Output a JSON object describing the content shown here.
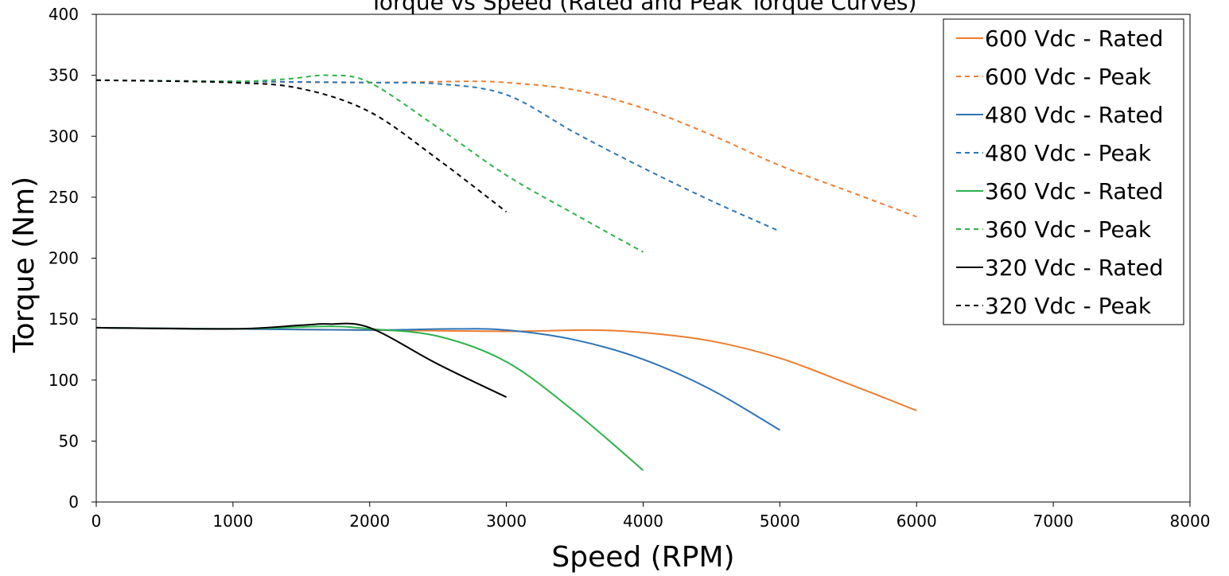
{
  "chart_data": {
    "type": "line",
    "title": "Torque vs Speed (Rated and Peak Torque Curves)",
    "xlabel": "Speed (RPM)",
    "ylabel": "Torque (Nm)",
    "xlim": [
      0,
      8000
    ],
    "ylim": [
      0,
      400
    ],
    "xticks": [
      0,
      1000,
      2000,
      3000,
      4000,
      5000,
      6000,
      7000,
      8000
    ],
    "yticks": [
      0,
      50,
      100,
      150,
      200,
      250,
      300,
      350,
      400
    ],
    "xtick_labels": [
      "0",
      "1000",
      "2000",
      "3000",
      "4000",
      "5000",
      "6000",
      "7000",
      "8000"
    ],
    "ytick_labels": [
      "0",
      "50",
      "100",
      "150",
      "200",
      "250",
      "300",
      "350",
      "400"
    ],
    "grid": false,
    "legend_position": "top-right",
    "series": [
      {
        "name": "600 Vdc - Rated",
        "color": "#ED7D31",
        "dash": "solid",
        "x": [
          0,
          1000,
          2000,
          3000,
          3600,
          4000,
          4500,
          5000,
          5500,
          6000
        ],
        "y": [
          143,
          142,
          141,
          140,
          141,
          139,
          132,
          118,
          97,
          75
        ]
      },
      {
        "name": "600 Vdc - Peak",
        "color": "#ED7D31",
        "dash": "dashed",
        "x": [
          0,
          1000,
          2000,
          2700,
          3000,
          3500,
          4000,
          4500,
          5000,
          5500,
          6000
        ],
        "y": [
          346,
          345,
          344,
          345,
          344,
          338,
          323,
          301,
          276,
          255,
          234
        ]
      },
      {
        "name": "480 Vdc - Rated",
        "color": "#2E75B6",
        "dash": "solid",
        "x": [
          0,
          1000,
          2000,
          2600,
          3000,
          3500,
          4000,
          4500,
          5000
        ],
        "y": [
          143,
          142,
          141,
          142,
          141,
          133,
          117,
          92,
          59
        ]
      },
      {
        "name": "480 Vdc - Peak",
        "color": "#2E75B6",
        "dash": "dashed",
        "x": [
          0,
          1000,
          2000,
          2500,
          3000,
          3500,
          4000,
          4500,
          5000
        ],
        "y": [
          346,
          345,
          344,
          343,
          334,
          303,
          274,
          247,
          222
        ]
      },
      {
        "name": "360 Vdc - Rated",
        "color": "#2DB34A",
        "dash": "solid",
        "x": [
          0,
          1000,
          1700,
          2000,
          2500,
          3000,
          3500,
          4000
        ],
        "y": [
          143,
          142,
          144,
          142,
          136,
          115,
          74,
          26
        ]
      },
      {
        "name": "360 Vdc - Peak",
        "color": "#2DB34A",
        "dash": "dashed",
        "x": [
          0,
          1000,
          1400,
          1700,
          2000,
          2500,
          3000,
          3500,
          4000
        ],
        "y": [
          346,
          345,
          347,
          350,
          344,
          307,
          268,
          236,
          205
        ]
      },
      {
        "name": "320 Vdc - Rated",
        "color": "#000000",
        "dash": "solid",
        "x": [
          0,
          1000,
          1500,
          1700,
          2000,
          2500,
          3000
        ],
        "y": [
          143,
          142,
          145,
          146,
          143,
          113,
          86
        ]
      },
      {
        "name": "320 Vdc - Peak",
        "color": "#000000",
        "dash": "dashed",
        "x": [
          0,
          1000,
          1500,
          2000,
          2500,
          3000
        ],
        "y": [
          346,
          344,
          339,
          320,
          281,
          238
        ]
      }
    ]
  }
}
